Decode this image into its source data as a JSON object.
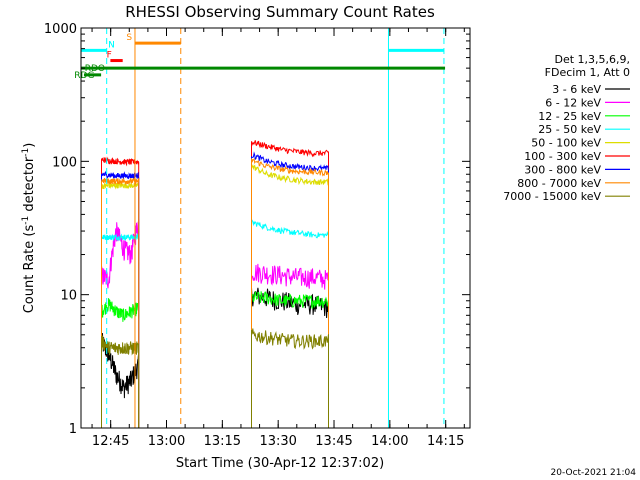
{
  "chart_data": {
    "type": "line",
    "title": "RHESSI Observing Summary Count Rates",
    "xlabel": "Start Time (30-Apr-12 12:37:02)",
    "ylabel_main": "Count Rate (s",
    "ylabel_sup1": "-1",
    "ylabel_mid": " detector",
    "ylabel_sup2": "-1",
    "ylabel_end": ")",
    "yscale": "log",
    "ylim": [
      1,
      1000
    ],
    "xlim_min": [
      0,
      104.5
    ],
    "x_ticks": [
      {
        "label": "12:45",
        "min": 7.97
      },
      {
        "label": "13:00",
        "min": 22.97
      },
      {
        "label": "13:15",
        "min": 37.97
      },
      {
        "label": "13:30",
        "min": 52.97
      },
      {
        "label": "13:45",
        "min": 67.97
      },
      {
        "label": "14:00",
        "min": 82.97
      },
      {
        "label": "14:15",
        "min": 97.97
      }
    ],
    "y_ticks": [
      {
        "label": "1",
        "value": 1
      },
      {
        "label": "10",
        "value": 10
      },
      {
        "label": "100",
        "value": 100
      },
      {
        "label": "1000",
        "value": 1000
      }
    ],
    "legend_header": [
      "Det 1,3,5,6,9,",
      "FDecim 1, Att 0"
    ],
    "series": [
      {
        "name": "3 - 6 keV",
        "color": "#000000",
        "seg1": [
          4.5,
          3.5,
          2.5,
          2.0,
          2.3,
          3.0
        ],
        "seg2": [
          10,
          9.5,
          9.0,
          8.5,
          8.5,
          8.0
        ]
      },
      {
        "name": "6 - 12 keV",
        "color": "#ff00ff",
        "seg1": [
          14,
          13,
          30,
          22,
          20,
          35
        ],
        "seg2": [
          15,
          14.5,
          14,
          13.5,
          13.5,
          13
        ]
      },
      {
        "name": "12 - 25 keV",
        "color": "#00ff00",
        "seg1": [
          7.5,
          8.5,
          7.5,
          7.0,
          7.5,
          8.0
        ],
        "seg2": [
          9.5,
          9.5,
          9.0,
          9.0,
          9.0,
          9.0
        ]
      },
      {
        "name": "25 - 50 keV",
        "color": "#00ffff",
        "seg1": [
          27,
          27,
          27,
          27,
          27,
          27
        ],
        "seg2": [
          35,
          32,
          30,
          29,
          28,
          28
        ]
      },
      {
        "name": "50 - 100 keV",
        "color": "#dddd00",
        "seg1": [
          65,
          66,
          66,
          66,
          66,
          66
        ],
        "seg2": [
          92,
          80,
          75,
          72,
          70,
          70
        ]
      },
      {
        "name": "100 - 300 keV",
        "color": "#ff0000",
        "seg1": [
          103,
          101,
          100,
          99,
          99,
          99
        ],
        "seg2": [
          140,
          130,
          122,
          118,
          115,
          115
        ]
      },
      {
        "name": "300 - 800 keV",
        "color": "#0000ff",
        "seg1": [
          80,
          79,
          78,
          78,
          78,
          78
        ],
        "seg2": [
          112,
          100,
          94,
          91,
          89,
          88
        ]
      },
      {
        "name": "800 - 7000 keV",
        "color": "#ff8800",
        "seg1": [
          72,
          71,
          71,
          71,
          71,
          71
        ],
        "seg2": [
          102,
          92,
          87,
          84,
          83,
          82
        ]
      },
      {
        "name": "7000 - 15000 keV",
        "color": "#808000",
        "seg1": [
          4.5,
          4.0,
          4.0,
          4.0,
          4.0,
          4.0
        ],
        "seg2": [
          5.0,
          4.8,
          4.6,
          4.5,
          4.5,
          4.5
        ]
      }
    ],
    "segment_ranges_min": [
      [
        5.5,
        15.5
      ],
      [
        45.8,
        66.5
      ]
    ],
    "flag_bars": [
      {
        "label": "RDO",
        "label_min": 1.0,
        "x0": 0.0,
        "x1": 97.8,
        "value": 500,
        "color": "#008800"
      },
      {
        "label": "RDG",
        "label_min": -1.8,
        "x0": 0.8,
        "x1": 5.4,
        "value": 445,
        "color": "#008800"
      },
      {
        "label": "N",
        "label_min": 7.3,
        "x0": 0.0,
        "x1": 6.9,
        "value": 680,
        "color": "#00ffff"
      },
      {
        "label": "N",
        "label_min": 7.3,
        "x0": 82.6,
        "x1": 97.5,
        "value": 680,
        "color": "#00ffff"
      },
      {
        "label": "F",
        "label_min": 6.9,
        "x0": 7.9,
        "x1": 11.2,
        "value": 570,
        "color": "#ff0000"
      },
      {
        "label": "S",
        "label_min": 12.2,
        "x0": 14.5,
        "x1": 26.8,
        "value": 770,
        "color": "#ff8800"
      }
    ],
    "vlines": [
      {
        "min": 0.0,
        "color": "#00ffff",
        "dashed": false
      },
      {
        "min": 6.9,
        "color": "#00ffff",
        "dashed": true
      },
      {
        "min": 14.5,
        "color": "#ff8800",
        "dashed": false
      },
      {
        "min": 26.8,
        "color": "#ff8800",
        "dashed": true
      },
      {
        "min": 82.6,
        "color": "#00ffff",
        "dashed": false
      },
      {
        "min": 97.5,
        "color": "#00ffff",
        "dashed": true
      }
    ],
    "footer_date": "20-Oct-2021 21:04"
  }
}
